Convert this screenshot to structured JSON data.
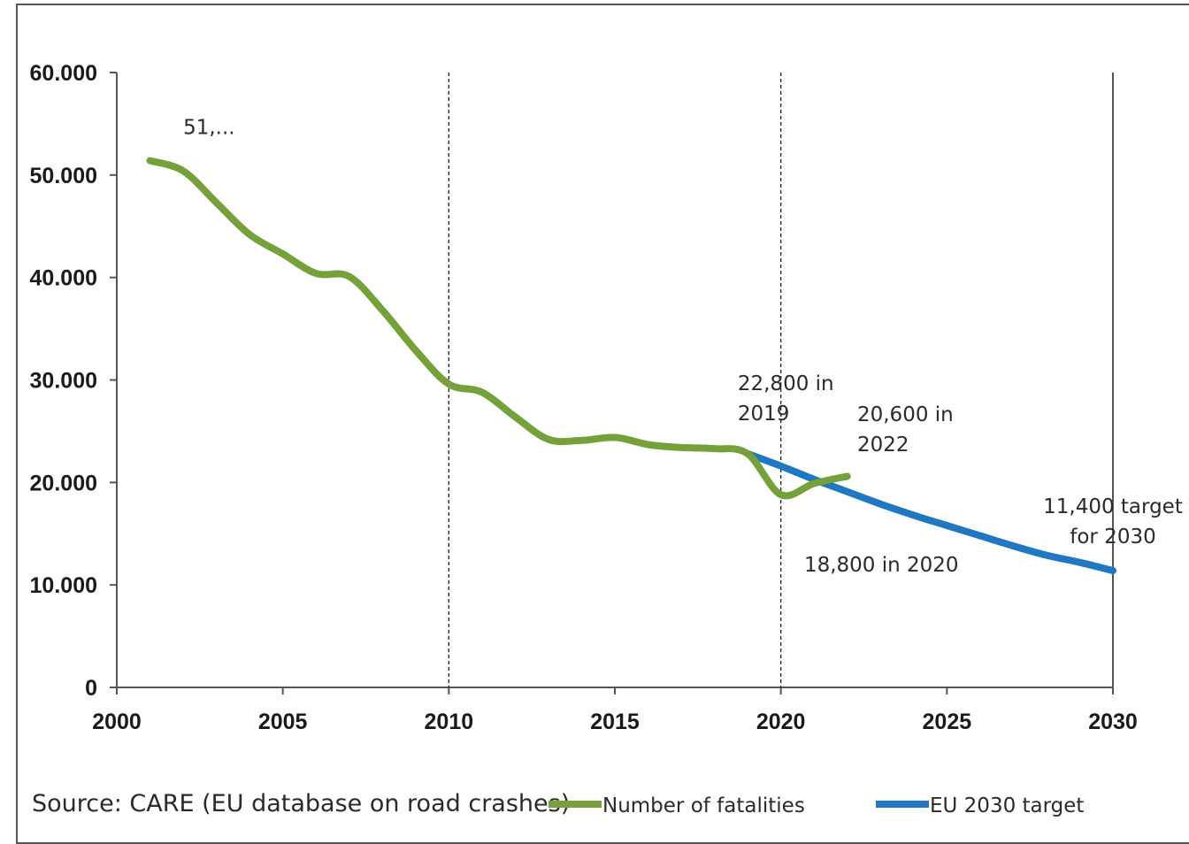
{
  "chart_data": {
    "type": "line",
    "title": "",
    "xlabel": "",
    "ylabel": "",
    "xlim": [
      2000,
      2030
    ],
    "ylim": [
      0,
      60000
    ],
    "x_ticks": [
      "2000",
      "2005",
      "2010",
      "2015",
      "2020",
      "2025",
      "2030"
    ],
    "y_ticks": [
      "0",
      "10.000",
      "20.000",
      "30.000",
      "40.000",
      "50.000",
      "60.000"
    ],
    "grid": false,
    "vertical_reference_lines": [
      2010,
      2020
    ],
    "series": [
      {
        "name": "Number of fatalities",
        "color": "#76a03a",
        "x": [
          2001,
          2002,
          2003,
          2004,
          2005,
          2006,
          2007,
          2008,
          2009,
          2010,
          2011,
          2012,
          2013,
          2014,
          2015,
          2016,
          2017,
          2018,
          2019,
          2020,
          2021,
          2022
        ],
        "y": [
          51400,
          50400,
          47300,
          44200,
          42300,
          40400,
          40100,
          36800,
          32900,
          29600,
          28800,
          26400,
          24200,
          24100,
          24400,
          23700,
          23400,
          23300,
          22800,
          18800,
          19900,
          20600
        ]
      },
      {
        "name": "EU 2030 target",
        "color": "#1f78c1",
        "x": [
          2019,
          2020,
          2021,
          2022,
          2023,
          2024,
          2025,
          2026,
          2027,
          2028,
          2029,
          2030
        ],
        "y": [
          22800,
          21600,
          20300,
          19100,
          17900,
          16800,
          15800,
          14800,
          13800,
          12900,
          12200,
          11400
        ]
      }
    ],
    "annotations": [
      {
        "text": "51,...",
        "x": 2002,
        "y": 54000
      },
      {
        "line1": "22,800 in",
        "line2": "2019",
        "x": 2018.7,
        "y": 29000
      },
      {
        "line1": "20,600 in",
        "line2": "2022",
        "x": 2022.3,
        "y": 26000
      },
      {
        "text": "18,800 in 2020",
        "x": 2020.7,
        "y": 11300
      },
      {
        "line1": "11,400 target",
        "line2": "for 2030",
        "x": 2030,
        "y": 17000
      }
    ],
    "source": "Source: CARE (EU database on road crashes)",
    "legend": [
      "Number of fatalities",
      "EU 2030 target"
    ]
  }
}
